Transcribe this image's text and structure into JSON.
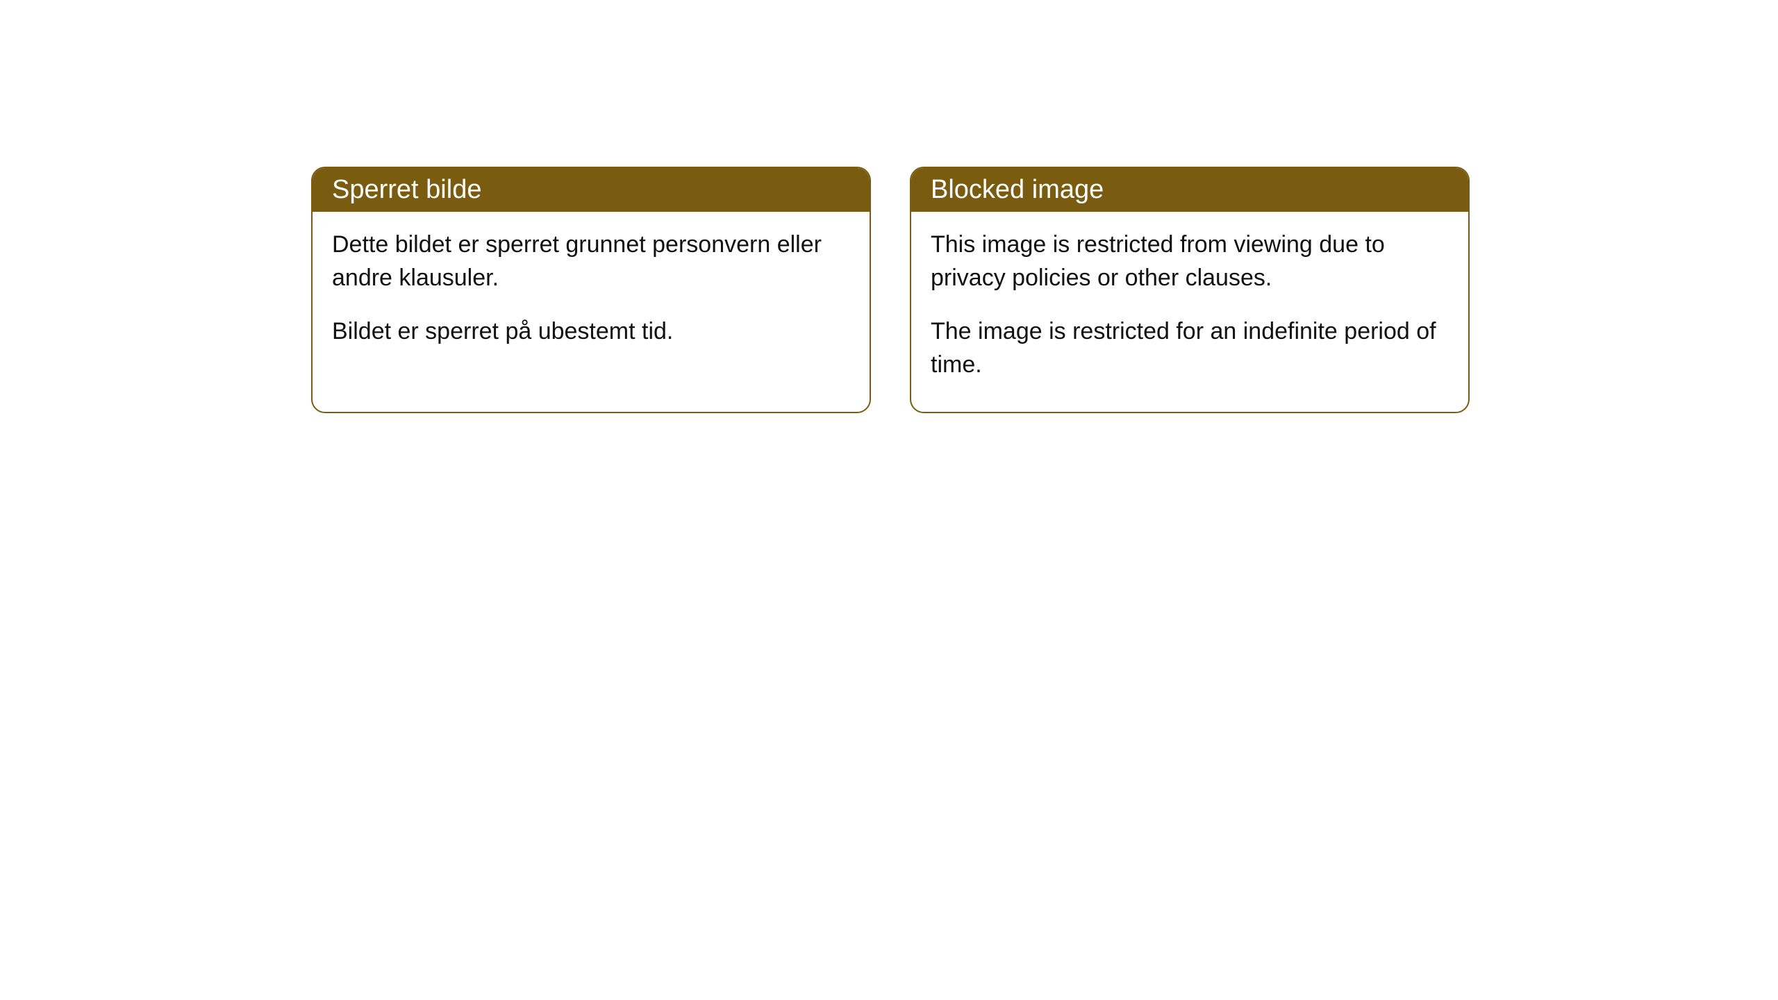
{
  "cards": [
    {
      "title": "Sperret bilde",
      "paragraph1": "Dette bildet er sperret grunnet personvern eller andre klausuler.",
      "paragraph2": "Bildet er sperret på ubestemt tid."
    },
    {
      "title": "Blocked image",
      "paragraph1": "This image is restricted from viewing due to privacy policies or other clauses.",
      "paragraph2": "The image is restricted for an indefinite period of time."
    }
  ],
  "styling": {
    "header_bg_color": "#7a5c11",
    "header_text_color": "#ffffff",
    "border_color": "#7a5c11",
    "body_bg_color": "#ffffff",
    "body_text_color": "#111111",
    "border_radius": 20,
    "header_fontsize": 38,
    "body_fontsize": 34
  }
}
